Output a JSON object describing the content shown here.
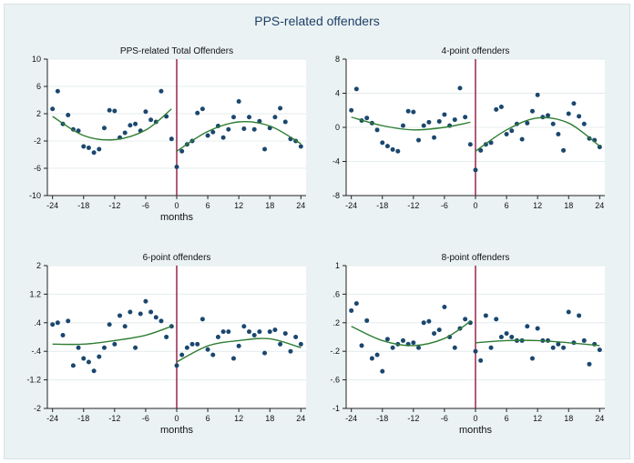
{
  "title": "PPS-related offenders",
  "colors": {
    "background": "#eaf2f3",
    "plot_background": "#ffffff",
    "points": "#1a476f",
    "fit": "#2e7d32",
    "cutoff": "#90173f",
    "grid": "#e4ecee"
  },
  "chart_data": [
    {
      "type": "scatter",
      "title": "PPS-related Total Offenders",
      "xlabel": "months",
      "ylabel": "",
      "xlim": [
        -25,
        25
      ],
      "ylim": [
        -10,
        10
      ],
      "xticks": [
        -24,
        -18,
        -12,
        -6,
        0,
        6,
        12,
        18,
        24
      ],
      "yticks": [
        10,
        6,
        2,
        -2,
        -6,
        -10
      ],
      "ytick_labels": [
        "10",
        "6",
        "2",
        "-2",
        "-6",
        "-10"
      ],
      "grid": true,
      "cutoff_x": 0,
      "points": [
        [
          -24,
          2.7
        ],
        [
          -23,
          5.3
        ],
        [
          -22,
          0.5
        ],
        [
          -21,
          1.8
        ],
        [
          -20,
          -0.3
        ],
        [
          -19,
          -0.5
        ],
        [
          -18,
          -2.8
        ],
        [
          -17,
          -3.0
        ],
        [
          -16,
          -3.7
        ],
        [
          -15,
          -3.2
        ],
        [
          -14,
          -0.1
        ],
        [
          -13,
          2.5
        ],
        [
          -12,
          2.4
        ],
        [
          -11,
          -1.5
        ],
        [
          -10,
          -0.8
        ],
        [
          -9,
          0.3
        ],
        [
          -8,
          0.5
        ],
        [
          -7,
          -0.5
        ],
        [
          -6,
          2.3
        ],
        [
          -5,
          1.1
        ],
        [
          -4,
          0.8
        ],
        [
          -3,
          5.3
        ],
        [
          -2,
          1.6
        ],
        [
          -1,
          -1.7
        ],
        [
          0,
          -5.8
        ],
        [
          1,
          -3.5
        ],
        [
          2,
          -2.5
        ],
        [
          3,
          -2.0
        ],
        [
          4,
          2.1
        ],
        [
          5,
          2.7
        ],
        [
          6,
          -1.2
        ],
        [
          7,
          -0.7
        ],
        [
          8,
          0.2
        ],
        [
          9,
          -1.5
        ],
        [
          10,
          -0.3
        ],
        [
          11,
          1.5
        ],
        [
          12,
          3.8
        ],
        [
          13,
          -0.2
        ],
        [
          14,
          1.5
        ],
        [
          15,
          -0.3
        ],
        [
          16,
          0.9
        ],
        [
          17,
          -3.2
        ],
        [
          18,
          -0.1
        ],
        [
          19,
          1.5
        ],
        [
          20,
          2.8
        ],
        [
          21,
          0.8
        ],
        [
          22,
          -1.7
        ],
        [
          23,
          -2.0
        ],
        [
          24,
          -2.8
        ]
      ],
      "fit_pre": [
        [
          -24,
          1.6
        ],
        [
          -18,
          -1.2
        ],
        [
          -12,
          -1.8
        ],
        [
          -6,
          -0.4
        ],
        [
          -1,
          2.7
        ]
      ],
      "fit_post": [
        [
          0,
          -3.5
        ],
        [
          6,
          -0.6
        ],
        [
          12,
          0.8
        ],
        [
          18,
          0.2
        ],
        [
          24,
          -2.4
        ]
      ]
    },
    {
      "type": "scatter",
      "title": "4-point offenders",
      "xlabel": "",
      "ylabel": "",
      "xlim": [
        -25,
        25
      ],
      "ylim": [
        -8,
        8
      ],
      "xticks": [
        -24,
        -18,
        -12,
        -6,
        0,
        6,
        12,
        18,
        24
      ],
      "yticks": [
        8,
        4,
        0,
        -4,
        -8
      ],
      "ytick_labels": [
        "8",
        "4",
        "0",
        "-4",
        "-8"
      ],
      "grid": true,
      "cutoff_x": 0,
      "points": [
        [
          -24,
          2.0
        ],
        [
          -23,
          4.5
        ],
        [
          -22,
          0.8
        ],
        [
          -21,
          1.1
        ],
        [
          -20,
          0.5
        ],
        [
          -19,
          -0.3
        ],
        [
          -18,
          -1.8
        ],
        [
          -17,
          -2.2
        ],
        [
          -16,
          -2.6
        ],
        [
          -15,
          -2.8
        ],
        [
          -14,
          0.2
        ],
        [
          -13,
          1.9
        ],
        [
          -12,
          1.8
        ],
        [
          -11,
          -1.5
        ],
        [
          -10,
          0.2
        ],
        [
          -9,
          0.6
        ],
        [
          -8,
          -1.2
        ],
        [
          -7,
          0.7
        ],
        [
          -6,
          1.5
        ],
        [
          -5,
          0.2
        ],
        [
          -4,
          0.9
        ],
        [
          -3,
          4.6
        ],
        [
          -2,
          1.2
        ],
        [
          -1,
          -2.0
        ],
        [
          0,
          -5.0
        ],
        [
          1,
          -2.7
        ],
        [
          2,
          -2.0
        ],
        [
          3,
          -1.8
        ],
        [
          4,
          2.1
        ],
        [
          5,
          2.4
        ],
        [
          6,
          -0.8
        ],
        [
          7,
          -0.4
        ],
        [
          8,
          0.4
        ],
        [
          9,
          -1.4
        ],
        [
          10,
          0.5
        ],
        [
          11,
          1.9
        ],
        [
          12,
          3.8
        ],
        [
          13,
          1.2
        ],
        [
          14,
          1.4
        ],
        [
          15,
          0.4
        ],
        [
          16,
          -0.8
        ],
        [
          17,
          -2.7
        ],
        [
          18,
          1.6
        ],
        [
          19,
          2.8
        ],
        [
          20,
          1.3
        ],
        [
          21,
          0.4
        ],
        [
          22,
          -1.3
        ],
        [
          23,
          -1.5
        ],
        [
          24,
          -2.3
        ]
      ],
      "fit_pre": [
        [
          -24,
          1.2
        ],
        [
          -18,
          0.2
        ],
        [
          -12,
          -0.3
        ],
        [
          -6,
          0.0
        ],
        [
          -1,
          0.6
        ]
      ],
      "fit_post": [
        [
          0,
          -2.8
        ],
        [
          6,
          -0.3
        ],
        [
          12,
          1.1
        ],
        [
          18,
          0.5
        ],
        [
          24,
          -2.2
        ]
      ]
    },
    {
      "type": "scatter",
      "title": "6-point offenders",
      "xlabel": "months",
      "ylabel": "",
      "xlim": [
        -25,
        25
      ],
      "ylim": [
        -2,
        2
      ],
      "xticks": [
        -24,
        -18,
        -12,
        -6,
        0,
        6,
        12,
        18,
        24
      ],
      "yticks": [
        2,
        1.2,
        0.4,
        -0.4,
        -1.2,
        -2
      ],
      "ytick_labels": [
        "2",
        "1.2",
        ".4",
        "-.4",
        "-1.2",
        "-2"
      ],
      "grid": true,
      "cutoff_x": 0,
      "points": [
        [
          -24,
          0.35
        ],
        [
          -23,
          0.4
        ],
        [
          -22,
          0.05
        ],
        [
          -21,
          0.45
        ],
        [
          -20,
          -0.8
        ],
        [
          -19,
          -0.3
        ],
        [
          -18,
          -0.6
        ],
        [
          -17,
          -0.7
        ],
        [
          -16,
          -0.95
        ],
        [
          -15,
          -0.55
        ],
        [
          -14,
          -0.3
        ],
        [
          -13,
          0.35
        ],
        [
          -12,
          -0.2
        ],
        [
          -11,
          0.6
        ],
        [
          -10,
          0.3
        ],
        [
          -9,
          0.7
        ],
        [
          -8,
          -0.3
        ],
        [
          -7,
          0.65
        ],
        [
          -6,
          1.0
        ],
        [
          -5,
          0.7
        ],
        [
          -4,
          0.55
        ],
        [
          -3,
          0.45
        ],
        [
          -2,
          0.0
        ],
        [
          -1,
          0.3
        ],
        [
          0,
          -0.8
        ],
        [
          1,
          -0.5
        ],
        [
          2,
          -0.3
        ],
        [
          3,
          -0.2
        ],
        [
          4,
          -0.2
        ],
        [
          5,
          0.5
        ],
        [
          6,
          -0.35
        ],
        [
          7,
          -0.5
        ],
        [
          8,
          0.0
        ],
        [
          9,
          0.15
        ],
        [
          10,
          0.15
        ],
        [
          11,
          -0.6
        ],
        [
          12,
          -0.25
        ],
        [
          13,
          0.3
        ],
        [
          14,
          0.15
        ],
        [
          15,
          0.05
        ],
        [
          16,
          0.15
        ],
        [
          17,
          -0.45
        ],
        [
          18,
          0.15
        ],
        [
          19,
          0.2
        ],
        [
          20,
          -0.2
        ],
        [
          21,
          0.1
        ],
        [
          22,
          -0.4
        ],
        [
          23,
          0.0
        ],
        [
          24,
          -0.2
        ]
      ],
      "fit_pre": [
        [
          -24,
          -0.2
        ],
        [
          -18,
          -0.2
        ],
        [
          -12,
          -0.1
        ],
        [
          -6,
          0.05
        ],
        [
          -1,
          0.3
        ]
      ],
      "fit_post": [
        [
          0,
          -0.7
        ],
        [
          6,
          -0.25
        ],
        [
          12,
          -0.1
        ],
        [
          18,
          -0.05
        ],
        [
          24,
          -0.3
        ]
      ]
    },
    {
      "type": "scatter",
      "title": "8-point offenders",
      "xlabel": "months",
      "ylabel": "",
      "xlim": [
        -25,
        25
      ],
      "ylim": [
        -1,
        1
      ],
      "xticks": [
        -24,
        -18,
        -12,
        -6,
        0,
        6,
        12,
        18,
        24
      ],
      "yticks": [
        1,
        0.6,
        0.2,
        -0.2,
        -0.6,
        -1
      ],
      "ytick_labels": [
        "1",
        ".6",
        ".2",
        "-.2",
        "-.6",
        "-1"
      ],
      "grid": true,
      "cutoff_x": 0,
      "points": [
        [
          -24,
          0.37
        ],
        [
          -23,
          0.47
        ],
        [
          -22,
          -0.12
        ],
        [
          -21,
          0.23
        ],
        [
          -20,
          -0.3
        ],
        [
          -19,
          -0.25
        ],
        [
          -18,
          -0.48
        ],
        [
          -17,
          -0.03
        ],
        [
          -16,
          -0.15
        ],
        [
          -15,
          -0.1
        ],
        [
          -14,
          -0.05
        ],
        [
          -13,
          -0.1
        ],
        [
          -12,
          -0.08
        ],
        [
          -11,
          -0.15
        ],
        [
          -10,
          0.2
        ],
        [
          -9,
          0.22
        ],
        [
          -8,
          0.05
        ],
        [
          -7,
          0.1
        ],
        [
          -6,
          0.42
        ],
        [
          -5,
          0.0
        ],
        [
          -4,
          -0.15
        ],
        [
          -3,
          0.12
        ],
        [
          -2,
          0.25
        ],
        [
          -1,
          0.2
        ],
        [
          0,
          -0.2
        ],
        [
          1,
          -0.33
        ],
        [
          2,
          0.3
        ],
        [
          3,
          -0.15
        ],
        [
          4,
          0.25
        ],
        [
          5,
          0.0
        ],
        [
          6,
          0.05
        ],
        [
          7,
          0.0
        ],
        [
          8,
          -0.05
        ],
        [
          9,
          -0.05
        ],
        [
          10,
          0.15
        ],
        [
          11,
          -0.3
        ],
        [
          12,
          0.12
        ],
        [
          13,
          -0.05
        ],
        [
          14,
          -0.05
        ],
        [
          15,
          -0.15
        ],
        [
          16,
          -0.1
        ],
        [
          17,
          -0.15
        ],
        [
          18,
          0.35
        ],
        [
          19,
          -0.08
        ],
        [
          20,
          0.3
        ],
        [
          21,
          -0.05
        ],
        [
          22,
          -0.38
        ],
        [
          23,
          -0.1
        ],
        [
          24,
          -0.18
        ]
      ],
      "fit_pre": [
        [
          -24,
          0.15
        ],
        [
          -18,
          -0.05
        ],
        [
          -12,
          -0.12
        ],
        [
          -6,
          -0.02
        ],
        [
          -1,
          0.22
        ]
      ],
      "fit_post": [
        [
          0,
          -0.08
        ],
        [
          6,
          -0.05
        ],
        [
          12,
          -0.05
        ],
        [
          18,
          -0.08
        ],
        [
          24,
          -0.12
        ]
      ]
    }
  ]
}
